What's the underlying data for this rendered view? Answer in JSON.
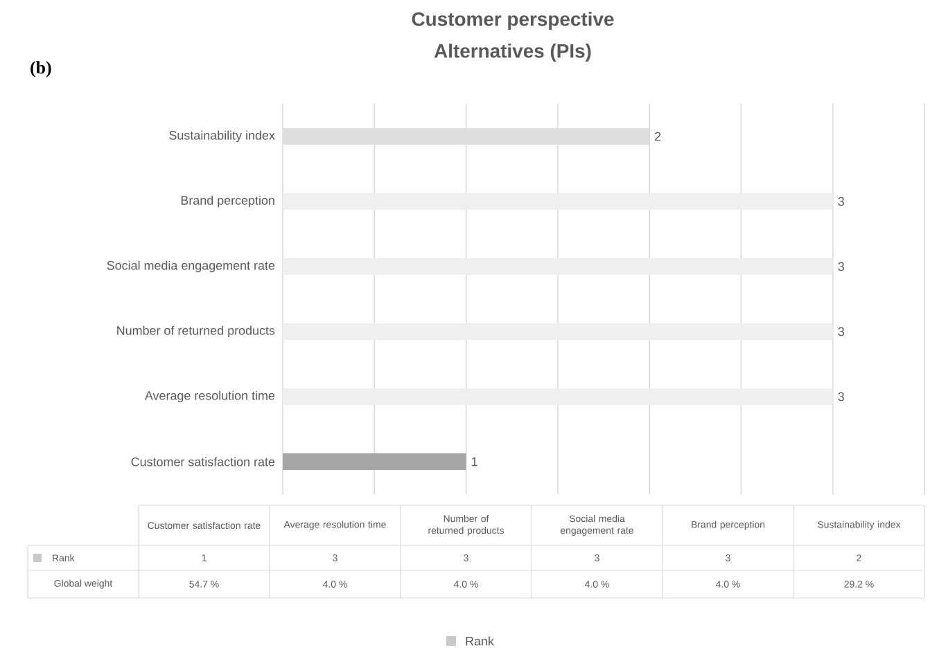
{
  "chart_data": {
    "type": "bar",
    "orientation": "horizontal",
    "title": "Customer perspective",
    "subtitle": "Alternatives (PIs)",
    "categories": [
      "Sustainability index",
      "Brand perception",
      "Social media engagement rate",
      "Number of returned products",
      "Average resolution time",
      "Customer satisfaction rate"
    ],
    "series": [
      {
        "name": "Rank",
        "color": "#c8c8c8",
        "values": [
          2,
          3,
          3,
          3,
          3,
          1
        ],
        "colors": [
          "#dedede",
          "#efefef",
          "#efefef",
          "#efefef",
          "#efefef",
          "#a5a5a5"
        ]
      }
    ],
    "xlim": [
      0,
      3.5
    ],
    "xticks": [
      {
        "value": 0,
        "label": null
      },
      {
        "value": 0.5,
        "label": null
      },
      {
        "value": 1,
        "label": null
      },
      {
        "value": 1.5,
        "label": null
      },
      {
        "value": 2,
        "label": null
      },
      {
        "value": 2.5,
        "label": null
      },
      {
        "value": 3,
        "label": null
      },
      {
        "value": 3.5,
        "label": null
      }
    ],
    "tick_labels": "y",
    "grid": "x",
    "legend": "bottom",
    "data_labels": true,
    "annotations": [
      "(b)",
      "Global weight",
      "54.7 %",
      "4.0 %",
      "4.0 %",
      "4.0 %",
      "4.0 %",
      "29.2 %",
      "1",
      "3",
      "3",
      "3",
      "3",
      "2"
    ]
  }
}
